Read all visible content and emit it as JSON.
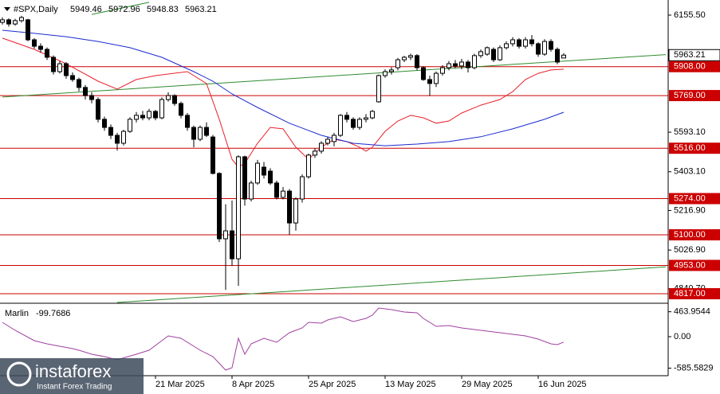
{
  "chart_data": {
    "type": "candlestick",
    "title": "#SPX,Daily",
    "bull_color": "#ffffff",
    "bear_color": "#000000",
    "outline_color": "#000000",
    "xticks": [
      {
        "value": 24,
        "label": "21 Mar 2025"
      },
      {
        "value": 36,
        "label": "8 Apr 2025"
      },
      {
        "value": 48,
        "label": "25 Apr 2025"
      },
      {
        "value": 60,
        "label": "13 May 2025"
      },
      {
        "value": 72,
        "label": "29 May 2025"
      },
      {
        "value": 84,
        "label": "16 Jun 2025"
      }
    ],
    "ylim": [
      4775,
      6220.5
    ],
    "yticks": [
      {
        "value": 6155.5,
        "label": "6155.50"
      },
      {
        "value": 5593.1,
        "label": "5593.10"
      },
      {
        "value": 5403.1,
        "label": "5403.10"
      },
      {
        "value": 5216.9,
        "label": "5216.90"
      },
      {
        "value": 5026.9,
        "label": "5026.90"
      },
      {
        "value": 4840.7,
        "label": "4840.70"
      }
    ],
    "candles": {
      "open": [
        6121,
        6133,
        6113,
        6129,
        6133,
        6037,
        6006,
        5991,
        5953,
        5884,
        5922,
        5865,
        5846,
        5808,
        5769,
        5750,
        5655,
        5616,
        5578,
        5540,
        5597,
        5655,
        5674,
        5662,
        5693,
        5662,
        5750,
        5769,
        5731,
        5674,
        5616,
        5559,
        5616,
        5570,
        5395,
        5081,
        5119,
        4985,
        5475,
        5272,
        5349,
        5425,
        5406,
        5349,
        5280,
        5310,
        5157,
        5272,
        5379,
        5483,
        5502,
        5540,
        5548,
        5578,
        5674,
        5655,
        5616,
        5655,
        5662,
        5739,
        5865,
        5884,
        5903,
        5941,
        5953,
        5961,
        5903,
        5846,
        5827,
        5876,
        5903,
        5922,
        5911,
        5930,
        5903,
        5961,
        5968,
        5991,
        5941,
        5999,
        6018,
        6037,
        6006,
        6037,
        6018,
        5968,
        6029,
        5991,
        5949.46
      ],
      "high": [
        6145,
        6140,
        6138,
        6152,
        6138,
        6045,
        6020,
        6000,
        5962,
        5935,
        5930,
        5880,
        5855,
        5820,
        5785,
        5760,
        5668,
        5630,
        5590,
        5605,
        5665,
        5690,
        5695,
        5705,
        5700,
        5760,
        5785,
        5775,
        5740,
        5685,
        5625,
        5625,
        5640,
        5580,
        5400,
        5247,
        5265,
        5482,
        5480,
        5360,
        5460,
        5450,
        5420,
        5360,
        5330,
        5320,
        5280,
        5390,
        5490,
        5515,
        5550,
        5570,
        5590,
        5680,
        5690,
        5665,
        5665,
        5680,
        5700,
        5870,
        5895,
        5905,
        5950,
        5960,
        5970,
        5968,
        5910,
        5865,
        5885,
        5915,
        5935,
        5940,
        5945,
        5940,
        5970,
        5990,
        6005,
        6000,
        6010,
        6030,
        6050,
        6045,
        6050,
        6060,
        6025,
        6040,
        6040,
        6000,
        5972.96
      ],
      "low": [
        6110,
        6100,
        6105,
        6120,
        6030,
        5995,
        5975,
        5940,
        5870,
        5875,
        5850,
        5835,
        5790,
        5750,
        5732,
        5640,
        5600,
        5560,
        5505,
        5530,
        5590,
        5640,
        5650,
        5650,
        5650,
        5655,
        5740,
        5720,
        5660,
        5600,
        5520,
        5550,
        5570,
        5390,
        5065,
        4835,
        4950,
        4855,
        5240,
        5260,
        5340,
        5370,
        5340,
        5270,
        5270,
        5100,
        5120,
        5255,
        5370,
        5470,
        5490,
        5530,
        5525,
        5570,
        5640,
        5605,
        5605,
        5640,
        5655,
        5735,
        5855,
        5870,
        5890,
        5930,
        5940,
        5890,
        5840,
        5767,
        5810,
        5865,
        5890,
        5900,
        5895,
        5880,
        5895,
        5950,
        5960,
        5930,
        5935,
        5990,
        6005,
        5995,
        5995,
        6005,
        5955,
        5960,
        5980,
        5920,
        5948.83
      ],
      "close": [
        6133,
        6113,
        6129,
        6144,
        6037,
        6006,
        5991,
        5953,
        5884,
        5922,
        5865,
        5846,
        5808,
        5769,
        5750,
        5655,
        5616,
        5578,
        5540,
        5597,
        5655,
        5674,
        5662,
        5693,
        5662,
        5750,
        5769,
        5731,
        5674,
        5616,
        5559,
        5616,
        5578,
        5395,
        5081,
        5119,
        4985,
        5475,
        5272,
        5349,
        5444,
        5387,
        5349,
        5280,
        5310,
        5157,
        5272,
        5379,
        5483,
        5502,
        5540,
        5559,
        5578,
        5674,
        5655,
        5616,
        5655,
        5662,
        5693,
        5865,
        5884,
        5892,
        5941,
        5953,
        5961,
        5903,
        5846,
        5827,
        5876,
        5903,
        5922,
        5911,
        5930,
        5903,
        5961,
        5980,
        5999,
        5941,
        5999,
        6018,
        6037,
        6006,
        6037,
        6018,
        5968,
        6029,
        5991,
        5930,
        5963.21
      ]
    },
    "levels_color": "#cc0000",
    "levels": [
      {
        "value": 5908,
        "label": "5908.00"
      },
      {
        "value": 5769,
        "label": "5769.00"
      },
      {
        "value": 5516,
        "label": "5516.00"
      },
      {
        "value": 5274,
        "label": "5274.00"
      },
      {
        "value": 5100,
        "label": "5100.00"
      },
      {
        "value": 4953,
        "label": "4953.00"
      },
      {
        "value": 4817,
        "label": "4817.00"
      }
    ],
    "moving_averages": [
      {
        "color": "#e8202a",
        "x": [
          0,
          5,
          10,
          15,
          18,
          21,
          24,
          29,
          32,
          34,
          36,
          37,
          38,
          40,
          42,
          44,
          46,
          48,
          50,
          52,
          54,
          56,
          57,
          58,
          60,
          62,
          64,
          66,
          68,
          70,
          72,
          75,
          78,
          80,
          82,
          84,
          86,
          88
        ],
        "values": [
          6045,
          5991,
          5922,
          5838,
          5800,
          5846,
          5865,
          5884,
          5827,
          5655,
          5463,
          5425,
          5444,
          5540,
          5616,
          5609,
          5521,
          5463,
          5521,
          5559,
          5548,
          5521,
          5502,
          5521,
          5597,
          5647,
          5674,
          5662,
          5636,
          5647,
          5685,
          5723,
          5750,
          5788,
          5846,
          5876,
          5892,
          5896
        ]
      },
      {
        "color": "#1a2ad0",
        "x": [
          0,
          5,
          10,
          15,
          20,
          25,
          30,
          33,
          36,
          40,
          45,
          50,
          55,
          60,
          65,
          70,
          75,
          80,
          85,
          88
        ],
        "values": [
          6083,
          6068,
          6052,
          6029,
          5999,
          5953,
          5884,
          5838,
          5777,
          5712,
          5636,
          5578,
          5540,
          5528,
          5536,
          5548,
          5571,
          5609,
          5655,
          5689
        ]
      }
    ],
    "trendlines": [
      {
        "color": "#2e8b2e",
        "x": [
          0,
          104
        ],
        "values": [
          5762,
          5966
        ]
      },
      {
        "color": "#2e8b2e",
        "x": [
          18,
          104
        ],
        "values": [
          4775,
          4946
        ]
      },
      {
        "color": "#2e8b2e",
        "x": [
          14,
          23
        ],
        "values": [
          6159,
          6217
        ]
      }
    ],
    "indicator": {
      "name": "Marlin",
      "color": "#a040a0",
      "ylim": [
        -725,
        607
      ],
      "yticks": [
        463.9544,
        {
          "value": 0,
          "label": "0.00"
        },
        -585.5829
      ],
      "x": [
        0,
        2,
        5,
        7,
        9,
        11,
        12,
        14,
        16,
        18,
        21,
        23,
        25,
        26,
        28,
        31,
        33,
        35,
        36,
        37,
        38,
        39,
        41,
        43,
        45,
        47,
        48,
        50,
        51,
        53,
        55,
        57,
        58,
        59,
        61,
        63,
        65,
        66,
        68,
        70,
        72,
        74,
        76,
        78,
        80,
        82,
        84,
        86,
        87,
        88
      ],
      "values": [
        266,
        118,
        -74,
        -133,
        -178,
        -222,
        -252,
        -326,
        -370,
        -429,
        -326,
        -252,
        -74,
        15,
        -30,
        -252,
        -370,
        -622,
        -577,
        -30,
        -326,
        -133,
        -30,
        -104,
        74,
        163,
        266,
        252,
        311,
        370,
        281,
        340,
        400,
        533,
        503,
        459,
        444,
        340,
        192,
        207,
        163,
        133,
        104,
        74,
        44,
        15,
        -44,
        -133,
        -148,
        -99.7686
      ]
    },
    "watermark": {
      "brand": "instaforex",
      "tagline": "Instant Forex Trading"
    }
  }
}
